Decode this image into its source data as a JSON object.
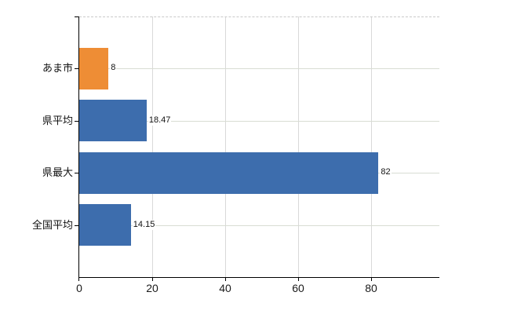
{
  "chart_data": {
    "type": "bar",
    "orientation": "horizontal",
    "title": "",
    "xlabel": "",
    "ylabel": "",
    "categories": [
      "あま市",
      "県平均",
      "県最大",
      "全国平均"
    ],
    "values": [
      8,
      18.47,
      82,
      14.15
    ],
    "value_labels": [
      "8",
      "18.47",
      "82",
      "14.15"
    ],
    "bar_colors": [
      "#ee8d35",
      "#3d6dad",
      "#3d6dad",
      "#3d6dad"
    ],
    "x_ticks": [
      0,
      20,
      40,
      60,
      80
    ],
    "x_tick_labels": [
      "0",
      "20",
      "40",
      "60",
      "80"
    ],
    "xlim": [
      0,
      98.7
    ],
    "grid": "on",
    "legend": "none"
  },
  "colors": {
    "bar_highlight": "#ee8d35",
    "bar_default": "#3d6dad",
    "axis": "#000000",
    "vgrid": "#d9d9d9",
    "hgrid": "#d8ddd3",
    "top_border": "#c9c9c9",
    "text": "#111111"
  }
}
